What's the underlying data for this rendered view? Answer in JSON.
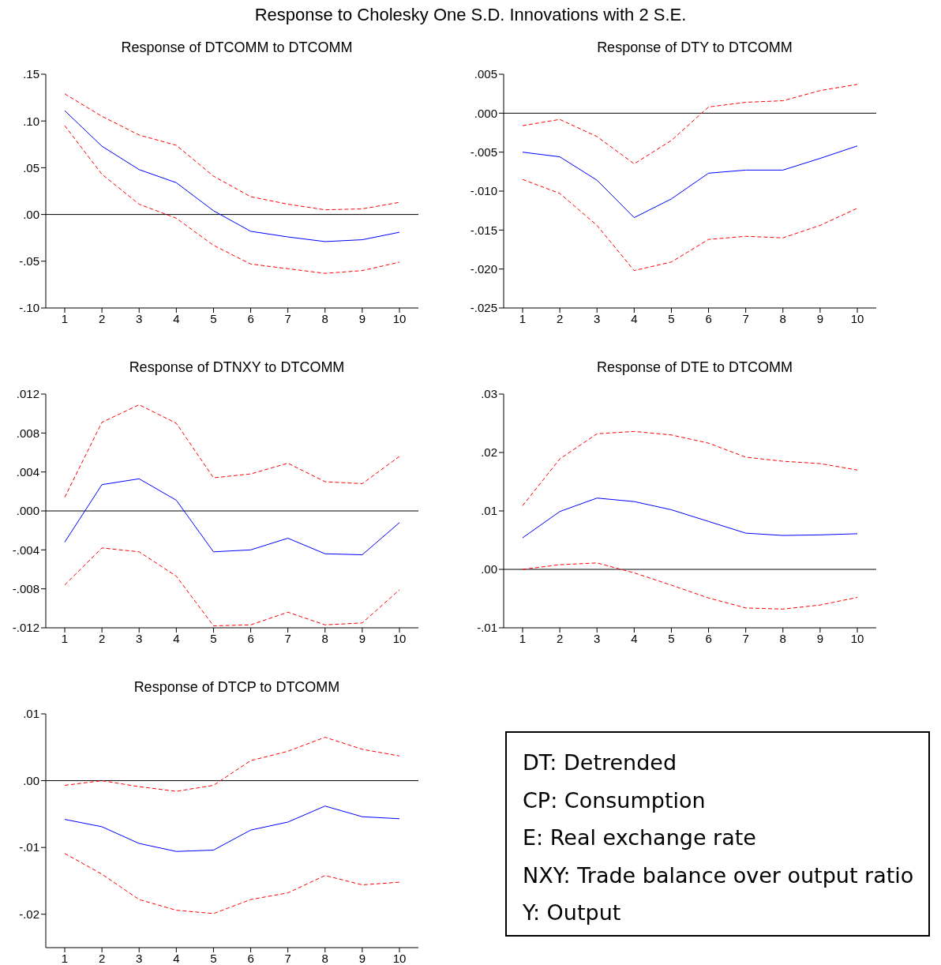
{
  "chart_data": [
    {
      "type": "other",
      "title": "Response to Cholesky One S.D. Innovations with 2 S.E."
    },
    {
      "type": "line",
      "title": "Response of DTCOMM to DTCOMM",
      "categories": [
        "1",
        "2",
        "3",
        "4",
        "5",
        "6",
        "7",
        "8",
        "9",
        "10"
      ],
      "ylim": [
        -0.1,
        0.15
      ],
      "yticks": [
        {
          "value": -0.1,
          "label": "-.10"
        },
        {
          "value": -0.05,
          "label": "-.05"
        },
        {
          "value": 0,
          "label": ".00"
        },
        {
          "value": 0.05,
          "label": ".05"
        },
        {
          "value": 0.1,
          "label": ".10"
        },
        {
          "value": 0.15,
          "label": ".15"
        }
      ],
      "ref_lines": [
        {
          "axis": "y",
          "value": 0,
          "color": "#000000"
        }
      ],
      "series": [
        {
          "color": "#0000ff",
          "line_style": "solid",
          "values": [
            0.111,
            0.073,
            0.048,
            0.034,
            0.004,
            -0.018,
            -0.024,
            -0.029,
            -0.027,
            -0.019
          ]
        },
        {
          "color": "#ff0000",
          "line_style": "dashed",
          "values": [
            0.129,
            0.105,
            0.085,
            0.074,
            0.041,
            0.019,
            0.011,
            0.005,
            0.006,
            0.013
          ]
        },
        {
          "color": "#ff0000",
          "line_style": "dashed",
          "values": [
            0.095,
            0.043,
            0.011,
            -0.004,
            -0.033,
            -0.053,
            -0.058,
            -0.063,
            -0.06,
            -0.051
          ]
        }
      ]
    },
    {
      "type": "line",
      "title": "Response of DTY to DTCOMM",
      "categories": [
        "1",
        "2",
        "3",
        "4",
        "5",
        "6",
        "7",
        "8",
        "9",
        "10"
      ],
      "ylim": [
        -0.025,
        0.005
      ],
      "yticks": [
        {
          "value": -0.025,
          "label": "-.025"
        },
        {
          "value": -0.02,
          "label": "-.020"
        },
        {
          "value": -0.015,
          "label": "-.015"
        },
        {
          "value": -0.01,
          "label": "-.010"
        },
        {
          "value": -0.005,
          "label": "-.005"
        },
        {
          "value": 0,
          "label": ".000"
        },
        {
          "value": 0.005,
          "label": ".005"
        }
      ],
      "ref_lines": [
        {
          "axis": "y",
          "value": 0,
          "color": "#000000"
        }
      ],
      "series": [
        {
          "color": "#0000ff",
          "line_style": "solid",
          "values": [
            -0.005,
            -0.0056,
            -0.0086,
            -0.0134,
            -0.011,
            -0.0077,
            -0.0073,
            -0.0073,
            -0.0058,
            -0.0042
          ]
        },
        {
          "color": "#ff0000",
          "line_style": "dashed",
          "values": [
            -0.0016,
            -0.0008,
            -0.003,
            -0.0065,
            -0.0035,
            0.0008,
            0.0014,
            0.0016,
            0.0029,
            0.0037
          ]
        },
        {
          "color": "#ff0000",
          "line_style": "dashed",
          "values": [
            -0.0085,
            -0.0103,
            -0.0144,
            -0.0202,
            -0.0191,
            -0.0162,
            -0.0158,
            -0.016,
            -0.0144,
            -0.0122
          ]
        }
      ]
    },
    {
      "type": "line",
      "title": "Response of DTNXY to DTCOMM",
      "categories": [
        "1",
        "2",
        "3",
        "4",
        "5",
        "6",
        "7",
        "8",
        "9",
        "10"
      ],
      "ylim": [
        -0.012,
        0.012
      ],
      "yticks": [
        {
          "value": -0.012,
          "label": "-.012"
        },
        {
          "value": -0.008,
          "label": "-.008"
        },
        {
          "value": -0.004,
          "label": "-.004"
        },
        {
          "value": 0,
          "label": ".000"
        },
        {
          "value": 0.004,
          "label": ".004"
        },
        {
          "value": 0.008,
          "label": ".008"
        },
        {
          "value": 0.012,
          "label": ".012"
        }
      ],
      "ref_lines": [
        {
          "axis": "y",
          "value": 0,
          "color": "#000000"
        }
      ],
      "series": [
        {
          "color": "#0000ff",
          "line_style": "solid",
          "values": [
            -0.0032,
            0.0027,
            0.0033,
            0.0011,
            -0.0042,
            -0.004,
            -0.0028,
            -0.0044,
            -0.0045,
            -0.0012
          ]
        },
        {
          "color": "#ff0000",
          "line_style": "dashed",
          "values": [
            0.0014,
            0.0091,
            0.0109,
            0.009,
            0.0034,
            0.0038,
            0.0049,
            0.003,
            0.0028,
            0.0056
          ]
        },
        {
          "color": "#ff0000",
          "line_style": "dashed",
          "values": [
            -0.0076,
            -0.0038,
            -0.0042,
            -0.0067,
            -0.0118,
            -0.0117,
            -0.0104,
            -0.0117,
            -0.0115,
            -0.0081
          ]
        }
      ]
    },
    {
      "type": "line",
      "title": "Response of DTE to DTCOMM",
      "categories": [
        "1",
        "2",
        "3",
        "4",
        "5",
        "6",
        "7",
        "8",
        "9",
        "10"
      ],
      "ylim": [
        -0.01,
        0.03
      ],
      "yticks": [
        {
          "value": -0.01,
          "label": "-.01"
        },
        {
          "value": 0,
          "label": ".00"
        },
        {
          "value": 0.01,
          "label": ".01"
        },
        {
          "value": 0.02,
          "label": ".02"
        },
        {
          "value": 0.03,
          "label": ".03"
        }
      ],
      "ref_lines": [
        {
          "axis": "y",
          "value": 0,
          "color": "#000000"
        }
      ],
      "series": [
        {
          "color": "#0000ff",
          "line_style": "solid",
          "values": [
            0.0054,
            0.0099,
            0.0122,
            0.0116,
            0.0102,
            0.0082,
            0.0062,
            0.0058,
            0.0059,
            0.0061
          ]
        },
        {
          "color": "#ff0000",
          "line_style": "dashed",
          "values": [
            0.0109,
            0.0189,
            0.0232,
            0.0236,
            0.023,
            0.0216,
            0.0192,
            0.0185,
            0.0181,
            0.017
          ]
        },
        {
          "color": "#ff0000",
          "line_style": "dashed",
          "values": [
            0.0,
            0.0008,
            0.0011,
            -0.0006,
            -0.0027,
            -0.0049,
            -0.0066,
            -0.0068,
            -0.0061,
            -0.0048
          ]
        }
      ]
    },
    {
      "type": "line",
      "title": "Response of DTCP to DTCOMM",
      "categories": [
        "1",
        "2",
        "3",
        "4",
        "5",
        "6",
        "7",
        "8",
        "9",
        "10"
      ],
      "ylim": [
        -0.025,
        0.01
      ],
      "yticks": [
        {
          "value": -0.02,
          "label": "-.02"
        },
        {
          "value": -0.01,
          "label": "-.01"
        },
        {
          "value": 0,
          "label": ".00"
        },
        {
          "value": 0.01,
          "label": ".01"
        }
      ],
      "ref_lines": [
        {
          "axis": "y",
          "value": 0,
          "color": "#000000"
        }
      ],
      "series": [
        {
          "color": "#0000ff",
          "line_style": "solid",
          "values": [
            -0.0058,
            -0.0069,
            -0.0094,
            -0.0106,
            -0.0104,
            -0.0074,
            -0.0062,
            -0.0038,
            -0.0054,
            -0.0057
          ]
        },
        {
          "color": "#ff0000",
          "line_style": "dashed",
          "values": [
            -0.0007,
            0.0,
            -0.0009,
            -0.0016,
            -0.0007,
            0.003,
            0.0044,
            0.0065,
            0.0047,
            0.0037
          ]
        },
        {
          "color": "#ff0000",
          "line_style": "dashed",
          "values": [
            -0.0109,
            -0.014,
            -0.0178,
            -0.0194,
            -0.0199,
            -0.0178,
            -0.0168,
            -0.0142,
            -0.0156,
            -0.0152
          ]
        }
      ]
    },
    {
      "type": "other",
      "annotations": [
        "DT: Detrended",
        "CP: Consumption",
        "E: Real exchange rate",
        "NXY: Trade balance over output ratio",
        "Y: Output"
      ]
    }
  ]
}
